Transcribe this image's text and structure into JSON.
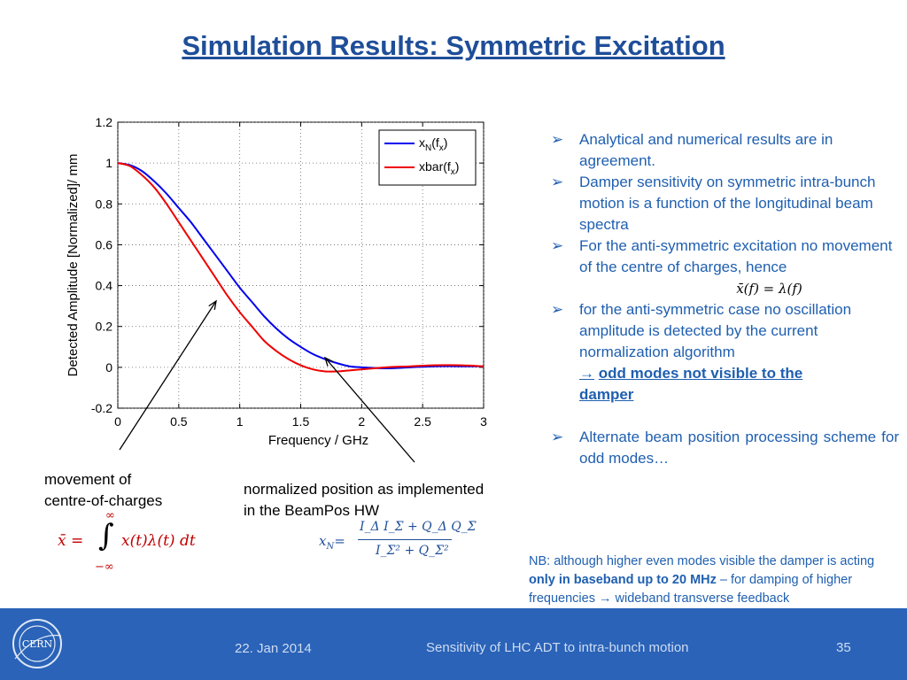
{
  "slide": {
    "title": "Simulation Results: Symmetric Excitation"
  },
  "chart_data": {
    "type": "line",
    "xlabel": "Frequency / GHz",
    "ylabel": "Detected Amplitude [Normalized]/ mm",
    "xlim": [
      0,
      3
    ],
    "ylim": [
      -0.2,
      1.2
    ],
    "x_ticks": [
      "0",
      "0.5",
      "1",
      "1.5",
      "2",
      "2.5",
      "3"
    ],
    "y_ticks": [
      "-0.2",
      "0",
      "0.2",
      "0.4",
      "0.6",
      "0.8",
      "1",
      "1.2"
    ],
    "grid": true,
    "legend_position": "top-right",
    "series": [
      {
        "name": "x_N(f_x)",
        "legend_main": "x",
        "legend_sub1": "N",
        "legend_mid": "(f",
        "legend_sub2": "x",
        "legend_end": ")",
        "color": "#0000ee",
        "x": [
          0,
          0.1,
          0.2,
          0.3,
          0.4,
          0.5,
          0.6,
          0.7,
          0.8,
          0.9,
          1.0,
          1.1,
          1.2,
          1.3,
          1.4,
          1.5,
          1.6,
          1.7,
          1.8,
          1.9,
          2.0,
          2.2,
          2.4,
          2.6,
          2.8,
          3.0
        ],
        "y": [
          1.0,
          0.99,
          0.96,
          0.91,
          0.85,
          0.78,
          0.71,
          0.63,
          0.55,
          0.47,
          0.39,
          0.32,
          0.25,
          0.19,
          0.14,
          0.1,
          0.065,
          0.04,
          0.02,
          0.005,
          0.0,
          -0.005,
          0.0,
          0.005,
          0.005,
          0.005
        ]
      },
      {
        "name": "xbar(f_x)",
        "legend_main": "xbar(f",
        "legend_sub1": "x",
        "legend_mid": ")",
        "legend_sub2": "",
        "legend_end": "",
        "color": "#ee0000",
        "x": [
          0,
          0.1,
          0.2,
          0.3,
          0.4,
          0.5,
          0.6,
          0.7,
          0.8,
          0.9,
          1.0,
          1.1,
          1.2,
          1.3,
          1.4,
          1.5,
          1.6,
          1.7,
          1.8,
          1.9,
          2.0,
          2.2,
          2.4,
          2.6,
          2.8,
          3.0
        ],
        "y": [
          1.0,
          0.985,
          0.94,
          0.88,
          0.8,
          0.71,
          0.62,
          0.53,
          0.44,
          0.35,
          0.27,
          0.2,
          0.13,
          0.08,
          0.04,
          0.01,
          -0.01,
          -0.02,
          -0.02,
          -0.015,
          -0.01,
          0.0,
          0.005,
          0.01,
          0.01,
          0.005
        ]
      }
    ]
  },
  "annotations": {
    "left_label_line1": "movement of",
    "left_label_line2": "centre-of-charges",
    "left_formula_lhs": "x̄ =",
    "left_formula_upper": "∞",
    "left_formula_integral": "∫",
    "left_formula_lower": "−∞",
    "left_formula_body": "x(t)λ(t) dt",
    "mid_label_line1": "normalized position as implemented",
    "mid_label_line2": "in the BeamPos HW",
    "mid_formula_lhs": "x",
    "mid_formula_lhs_sub": "N",
    "mid_formula_eq": "=",
    "mid_formula_num": "I_Δ I_Σ + Q_Δ Q_Σ",
    "mid_formula_den": "I_Σ² + Q_Σ²"
  },
  "bullets": {
    "b1": "Analytical and numerical results are in agreement.",
    "b2": "Damper sensitivity on symmetric intra-bunch motion is a function of the longitudinal beam spectra",
    "b3": "For the anti-symmetric excitation no movement of the centre of charges, hence",
    "b3_formula": "x̄(f) = λ(f)",
    "b4": "for the anti-symmetric case no oscillation amplitude is detected by the current normalization algorithm",
    "b4_link_arrow": "→",
    "b4_link_line1": "odd modes not visible to the",
    "b4_link_line2": "damper",
    "b5": "Alternate beam position processing scheme for odd modes…"
  },
  "nb": {
    "prefix": "NB: although higher even modes visible the damper is acting ",
    "bold": "only in baseband  up to 20 MHz",
    "suffix": " – for damping of higher frequencies → wideband transverse feedback"
  },
  "footer": {
    "date": "22. Jan 2014",
    "talk_title": "Sensitivity of LHC ADT to intra-bunch motion",
    "page_number": "35",
    "logo_text": "CERN",
    "bg_color": "#2a63b8"
  },
  "colors": {
    "title": "#1f4e99",
    "bullets": "#1f5fb0",
    "formula_red": "#c00000"
  }
}
